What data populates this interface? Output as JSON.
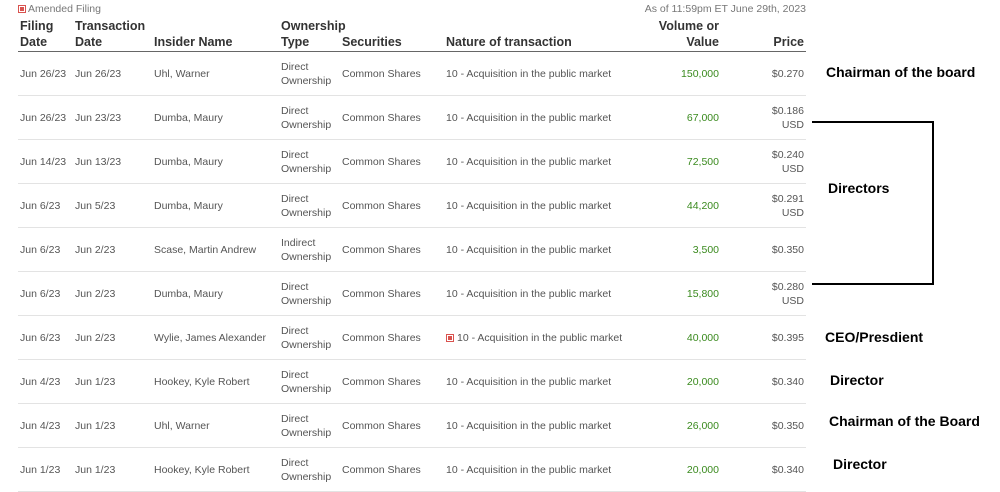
{
  "header": {
    "amended_label": "Amended Filing",
    "as_of": "As of 11:59pm ET June 29th, 2023"
  },
  "columns": {
    "filing_date": "Filing Date",
    "transaction_date": "Transaction Date",
    "insider_name": "Insider Name",
    "ownership_type": "Ownership Type",
    "securities": "Securities",
    "nature": "Nature of transaction",
    "volume": "Volume or Value",
    "price": "Price"
  },
  "rows": [
    {
      "filing": "Jun 26/23",
      "transaction": "Jun 26/23",
      "name": "Uhl, Warner",
      "ownership": "Direct Ownership",
      "securities": "Common Shares",
      "nature": "10 - Acquisition in the public market",
      "amended": false,
      "volume": "150,000",
      "price": "$0.270",
      "currency": ""
    },
    {
      "filing": "Jun 26/23",
      "transaction": "Jun 23/23",
      "name": "Dumba, Maury",
      "ownership": "Direct Ownership",
      "securities": "Common Shares",
      "nature": "10 - Acquisition in the public market",
      "amended": false,
      "volume": "67,000",
      "price": "$0.186",
      "currency": "USD"
    },
    {
      "filing": "Jun 14/23",
      "transaction": "Jun 13/23",
      "name": "Dumba, Maury",
      "ownership": "Direct Ownership",
      "securities": "Common Shares",
      "nature": "10 - Acquisition in the public market",
      "amended": false,
      "volume": "72,500",
      "price": "$0.240",
      "currency": "USD"
    },
    {
      "filing": "Jun 6/23",
      "transaction": "Jun 5/23",
      "name": "Dumba, Maury",
      "ownership": "Direct Ownership",
      "securities": "Common Shares",
      "nature": "10 - Acquisition in the public market",
      "amended": false,
      "volume": "44,200",
      "price": "$0.291",
      "currency": "USD"
    },
    {
      "filing": "Jun 6/23",
      "transaction": "Jun 2/23",
      "name": "Scase, Martin Andrew",
      "ownership": "Indirect Ownership",
      "securities": "Common Shares",
      "nature": "10 - Acquisition in the public market",
      "amended": false,
      "volume": "3,500",
      "price": "$0.350",
      "currency": ""
    },
    {
      "filing": "Jun 6/23",
      "transaction": "Jun 2/23",
      "name": "Dumba, Maury",
      "ownership": "Direct Ownership",
      "securities": "Common Shares",
      "nature": "10 - Acquisition in the public market",
      "amended": false,
      "volume": "15,800",
      "price": "$0.280",
      "currency": "USD"
    },
    {
      "filing": "Jun 6/23",
      "transaction": "Jun 2/23",
      "name": "Wylie, James Alexander",
      "ownership": "Direct Ownership",
      "securities": "Common Shares",
      "nature": "10 - Acquisition in the public market",
      "amended": true,
      "volume": "40,000",
      "price": "$0.395",
      "currency": ""
    },
    {
      "filing": "Jun 4/23",
      "transaction": "Jun 1/23",
      "name": "Hookey, Kyle Robert",
      "ownership": "Direct Ownership",
      "securities": "Common Shares",
      "nature": "10 - Acquisition in the public market",
      "amended": false,
      "volume": "20,000",
      "price": "$0.340",
      "currency": ""
    },
    {
      "filing": "Jun 4/23",
      "transaction": "Jun 1/23",
      "name": "Uhl, Warner",
      "ownership": "Direct Ownership",
      "securities": "Common Shares",
      "nature": "10 - Acquisition in the public market",
      "amended": false,
      "volume": "26,000",
      "price": "$0.350",
      "currency": ""
    },
    {
      "filing": "Jun 1/23",
      "transaction": "Jun 1/23",
      "name": "Hookey, Kyle Robert",
      "ownership": "Direct Ownership",
      "securities": "Common Shares",
      "nature": "10 - Acquisition in the public market",
      "amended": false,
      "volume": "20,000",
      "price": "$0.340",
      "currency": ""
    }
  ],
  "annotations": {
    "chairman_1": "Chairman of the board",
    "directors": "Directors",
    "ceo": "CEO/Presdient",
    "director_1": "Director",
    "chairman_2": "Chairman of the Board",
    "director_2": "Director"
  },
  "colors": {
    "volume_green": "#3a8a1e",
    "amended_red": "#d9534f"
  }
}
